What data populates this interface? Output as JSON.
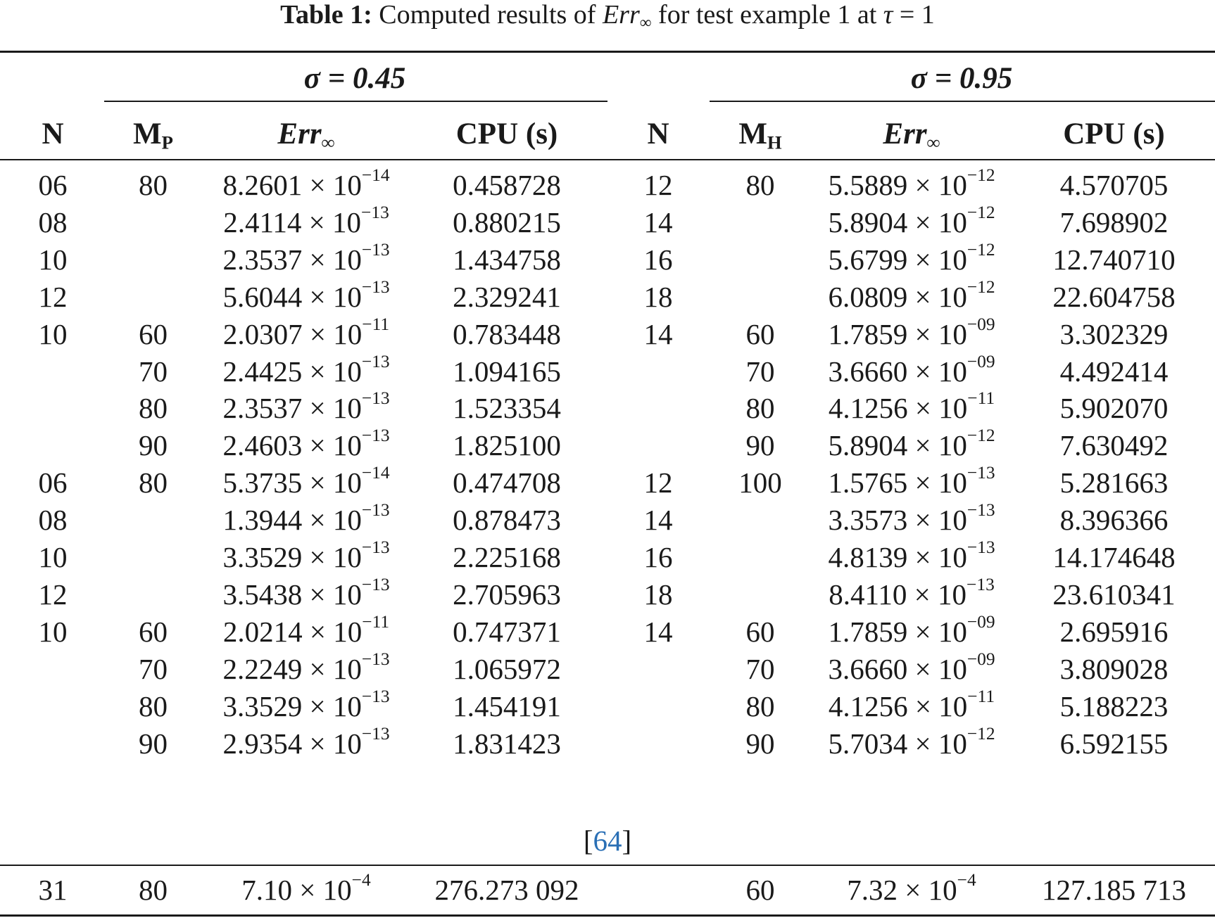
{
  "caption": {
    "label": "Table 1:",
    "text_pre": "Computed results of",
    "err_symbol": "Err",
    "err_sub": "∞",
    "text_post": "for test example 1 at",
    "tau": "τ",
    "tau_value": "= 1"
  },
  "groups": {
    "left": "σ = 0.45",
    "right": "σ = 0.95"
  },
  "headers": {
    "n": "N",
    "mp_main": "M",
    "mp_sub": "P",
    "mh_main": "M",
    "mh_sub": "H",
    "err": "Err",
    "err_sub": "∞",
    "cpu": "CPU (s)"
  },
  "times": "×",
  "ten": "10",
  "rows": [
    {
      "n1": "06",
      "m1": "80",
      "e1": "8.2601",
      "x1": "−14",
      "c1": "0.458728",
      "n2": "12",
      "m2": "80",
      "e2": "5.5889",
      "x2": "−12",
      "c2": "4.570705"
    },
    {
      "n1": "08",
      "m1": "",
      "e1": "2.4114",
      "x1": "−13",
      "c1": "0.880215",
      "n2": "14",
      "m2": "",
      "e2": "5.8904",
      "x2": "−12",
      "c2": "7.698902"
    },
    {
      "n1": "10",
      "m1": "",
      "e1": "2.3537",
      "x1": "−13",
      "c1": "1.434758",
      "n2": "16",
      "m2": "",
      "e2": "5.6799",
      "x2": "−12",
      "c2": "12.740710"
    },
    {
      "n1": "12",
      "m1": "",
      "e1": "5.6044",
      "x1": "−13",
      "c1": "2.329241",
      "n2": "18",
      "m2": "",
      "e2": "6.0809",
      "x2": "−12",
      "c2": "22.604758"
    },
    {
      "n1": "10",
      "m1": "60",
      "e1": "2.0307",
      "x1": "−11",
      "c1": "0.783448",
      "n2": "14",
      "m2": "60",
      "e2": "1.7859",
      "x2": "−09",
      "c2": "3.302329"
    },
    {
      "n1": "",
      "m1": "70",
      "e1": "2.4425",
      "x1": "−13",
      "c1": "1.094165",
      "n2": "",
      "m2": "70",
      "e2": "3.6660",
      "x2": "−09",
      "c2": "4.492414"
    },
    {
      "n1": "",
      "m1": "80",
      "e1": "2.3537",
      "x1": "−13",
      "c1": "1.523354",
      "n2": "",
      "m2": "80",
      "e2": "4.1256",
      "x2": "−11",
      "c2": "5.902070"
    },
    {
      "n1": "",
      "m1": "90",
      "e1": "2.4603",
      "x1": "−13",
      "c1": "1.825100",
      "n2": "",
      "m2": "90",
      "e2": "5.8904",
      "x2": "−12",
      "c2": "7.630492"
    },
    {
      "n1": "06",
      "m1": "80",
      "e1": "5.3735",
      "x1": "−14",
      "c1": "0.474708",
      "n2": "12",
      "m2": "100",
      "e2": "1.5765",
      "x2": "−13",
      "c2": "5.281663"
    },
    {
      "n1": "08",
      "m1": "",
      "e1": "1.3944",
      "x1": "−13",
      "c1": "0.878473",
      "n2": "14",
      "m2": "",
      "e2": "3.3573",
      "x2": "−13",
      "c2": "8.396366"
    },
    {
      "n1": "10",
      "m1": "",
      "e1": "3.3529",
      "x1": "−13",
      "c1": "2.225168",
      "n2": "16",
      "m2": "",
      "e2": "4.8139",
      "x2": "−13",
      "c2": "14.174648"
    },
    {
      "n1": "12",
      "m1": "",
      "e1": "3.5438",
      "x1": "−13",
      "c1": "2.705963",
      "n2": "18",
      "m2": "",
      "e2": "8.4110",
      "x2": "−13",
      "c2": "23.610341"
    },
    {
      "n1": "10",
      "m1": "60",
      "e1": "2.0214",
      "x1": "−11",
      "c1": "0.747371",
      "n2": "14",
      "m2": "60",
      "e2": "1.7859",
      "x2": "−09",
      "c2": "2.695916"
    },
    {
      "n1": "",
      "m1": "70",
      "e1": "2.2249",
      "x1": "−13",
      "c1": "1.065972",
      "n2": "",
      "m2": "70",
      "e2": "3.6660",
      "x2": "−09",
      "c2": "3.809028"
    },
    {
      "n1": "",
      "m1": "80",
      "e1": "3.3529",
      "x1": "−13",
      "c1": "1.454191",
      "n2": "",
      "m2": "80",
      "e2": "4.1256",
      "x2": "−11",
      "c2": "5.188223"
    },
    {
      "n1": "",
      "m1": "90",
      "e1": "2.9354",
      "x1": "−13",
      "c1": "1.831423",
      "n2": "",
      "m2": "90",
      "e2": "5.7034",
      "x2": "−12",
      "c2": "6.592155"
    }
  ],
  "reference": {
    "open": "[",
    "num": "64",
    "close": "]"
  },
  "final_row": {
    "n1": "31",
    "m1": "80",
    "e1": "7.10",
    "x1": "−4",
    "c1": "276.273 092",
    "n2": "",
    "m2": "60",
    "e2": "7.32",
    "x2": "−4",
    "c2": "127.185 713"
  }
}
